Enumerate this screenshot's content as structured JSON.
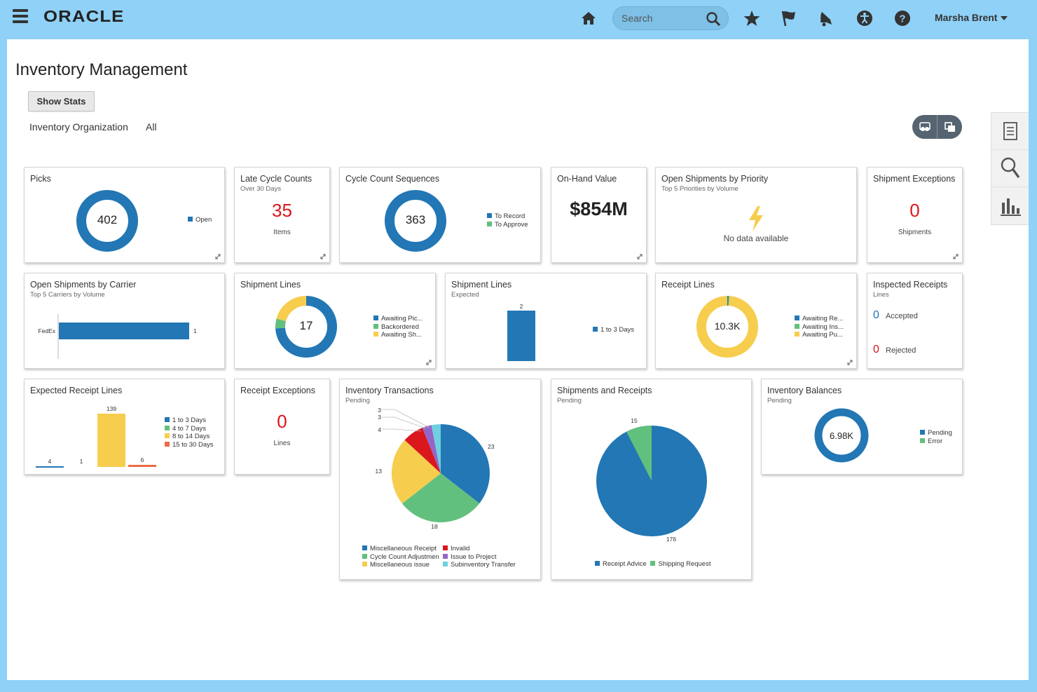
{
  "colors": {
    "blue": "#2277b4",
    "green": "#62c07e",
    "yellow": "#f7cd4e",
    "red": "#d9171c",
    "orange": "#ee6a45",
    "purple": "#9466c8",
    "cyan": "#6fd0e0",
    "header": "#8fd1f7"
  },
  "header": {
    "logo": "ORACLE",
    "search_placeholder": "Search",
    "user": "Marsha Brent"
  },
  "page": {
    "title": "Inventory Management",
    "show_stats": "Show Stats",
    "org_label": "Inventory Organization",
    "org_value": "All"
  },
  "tiles": {
    "picks": {
      "title": "Picks",
      "value": "402",
      "legend": [
        "Open"
      ]
    },
    "late_cycle": {
      "title": "Late Cycle Counts",
      "subtitle": "Over 30 Days",
      "value": "35",
      "caption": "Items"
    },
    "cycle_seq": {
      "title": "Cycle Count Sequences",
      "value": "363",
      "legend": [
        "To Record",
        "To Approve"
      ]
    },
    "onhand": {
      "title": "On-Hand Value",
      "value": "$854M"
    },
    "open_priority": {
      "title": "Open Shipments by Priority",
      "subtitle": "Top 5 Priorities by Volume",
      "message": "No data available"
    },
    "ship_exceptions": {
      "title": "Shipment Exceptions",
      "value": "0",
      "caption": "Shipments"
    },
    "carrier": {
      "title": "Open Shipments by Carrier",
      "subtitle": "Top 5 Carriers by Volume",
      "category": "FedEx",
      "value_label": "1"
    },
    "ship_lines": {
      "title": "Shipment Lines",
      "value": "17",
      "legend": [
        "Awaiting Pic...",
        "Backordered",
        "Awaiting Sh..."
      ]
    },
    "ship_expected": {
      "title": "Shipment Lines",
      "subtitle": "Expected",
      "value_label": "2",
      "legend": [
        "1 to 3 Days"
      ]
    },
    "receipt_lines": {
      "title": "Receipt Lines",
      "value": "10.3K",
      "legend": [
        "Awaiting Re...",
        "Awaiting Ins...",
        "Awaiting Pu..."
      ]
    },
    "inspected": {
      "title": "Inspected Receipts",
      "subtitle": "Lines",
      "accepted_value": "0",
      "accepted_label": "Accepted",
      "rejected_value": "0",
      "rejected_label": "Rejected"
    },
    "expected_receipt": {
      "title": "Expected Receipt Lines",
      "labels": [
        "4",
        "1",
        "139",
        "6"
      ],
      "legend": [
        "1 to 3 Days",
        "4 to 7 Days",
        "8 to 14 Days",
        "15 to 30 Days"
      ]
    },
    "receipt_exceptions": {
      "title": "Receipt Exceptions",
      "value": "0",
      "caption": "Lines"
    },
    "inv_trans": {
      "title": "Inventory Transactions",
      "subtitle": "Pending",
      "labels": [
        "23",
        "18",
        "13",
        "4",
        "3",
        "3"
      ],
      "legend": [
        "Miscellaneous Receipt",
        "Invalid",
        "Cycle Count Adjustmen",
        "Issue to Project",
        "Miscellaneous issue",
        "Subinventory Transfer"
      ]
    },
    "ship_receipts": {
      "title": "Shipments and Receipts",
      "subtitle": "Pending",
      "labels": [
        "15",
        "176"
      ],
      "legend": [
        "Receipt Advice",
        "Shipping Request"
      ]
    },
    "inv_balances": {
      "title": "Inventory Balances",
      "subtitle": "Pending",
      "value": "6.98K",
      "legend": [
        "Pending",
        "Error"
      ]
    }
  },
  "chart_data": [
    {
      "type": "pie",
      "title": "Picks",
      "labels": [
        "Open"
      ],
      "values": [
        402
      ]
    },
    {
      "type": "pie",
      "title": "Cycle Count Sequences",
      "labels": [
        "To Record",
        "To Approve"
      ],
      "values": [
        363,
        0
      ]
    },
    {
      "type": "bar",
      "title": "Open Shipments by Carrier",
      "categories": [
        "FedEx"
      ],
      "values": [
        1
      ]
    },
    {
      "type": "pie",
      "title": "Shipment Lines",
      "labels": [
        "Awaiting Pic...",
        "Backordered",
        "Awaiting Sh..."
      ],
      "values": [
        12,
        1,
        4
      ]
    },
    {
      "type": "bar",
      "title": "Shipment Lines",
      "categories": [
        "1 to 3 Days"
      ],
      "values": [
        2
      ]
    },
    {
      "type": "pie",
      "title": "Receipt Lines",
      "labels": [
        "Awaiting Re...",
        "Awaiting Ins...",
        "Awaiting Pu..."
      ],
      "values": [
        100,
        1,
        10200
      ]
    },
    {
      "type": "bar",
      "title": "Expected Receipt Lines",
      "series": [
        {
          "name": "1 to 3 Days",
          "values": [
            4
          ]
        },
        {
          "name": "4 to 7 Days",
          "values": [
            1
          ]
        },
        {
          "name": "8 to 14 Days",
          "values": [
            139
          ]
        },
        {
          "name": "15 to 30 Days",
          "values": [
            6
          ]
        }
      ]
    },
    {
      "type": "pie",
      "title": "Inventory Transactions",
      "labels": [
        "Miscellaneous Receipt",
        "Cycle Count Adjustmen",
        "Miscellaneous issue",
        "Invalid",
        "Issue to Project",
        "Subinventory Transfer"
      ],
      "values": [
        23,
        18,
        13,
        4,
        3,
        3
      ]
    },
    {
      "type": "pie",
      "title": "Shipments and Receipts",
      "labels": [
        "Receipt Advice",
        "Shipping Request"
      ],
      "values": [
        176,
        15
      ]
    },
    {
      "type": "pie",
      "title": "Inventory Balances",
      "labels": [
        "Pending",
        "Error"
      ],
      "values": [
        6980,
        0
      ]
    }
  ]
}
